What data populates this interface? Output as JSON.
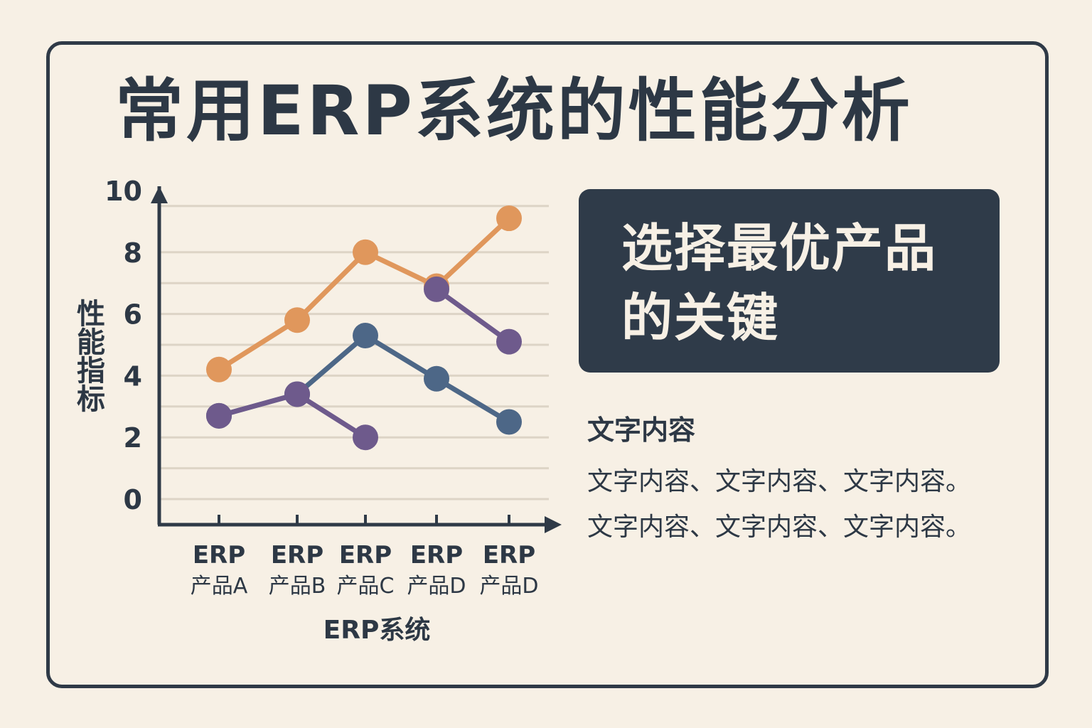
{
  "title": "常用ERP系统的性能分析",
  "panel": {
    "title": "选择最优产品的关键"
  },
  "text_block": {
    "heading": "文字内容",
    "lines": [
      "文字内容、文字内容、文字内容。",
      "文字内容、文字内容、文字内容。"
    ]
  },
  "colors": {
    "background": "#f7f0e5",
    "dark": "#2f3b49",
    "orange": "#e0975c",
    "blue": "#4d6787",
    "purple": "#6e5a8c",
    "slate": "#5d6678"
  },
  "chart_data": {
    "type": "line",
    "title": "",
    "xlabel": "ERP系统",
    "ylabel": "性能指标",
    "ylim": [
      0,
      10
    ],
    "yticks": [
      "0",
      "2",
      "4",
      "6",
      "8",
      "10"
    ],
    "categories": [
      [
        "ERP",
        "产品A"
      ],
      [
        "ERP",
        "产品B"
      ],
      [
        "ERP",
        "产品C"
      ],
      [
        "ERP",
        "产品D"
      ],
      [
        "ERP",
        "产品D"
      ]
    ],
    "grid": true,
    "series": [
      {
        "color": "#e0975c",
        "values": [
          4.2,
          5.8,
          8.0,
          6.9,
          9.1
        ]
      },
      {
        "color": "#6e5a8c",
        "values": [
          null,
          null,
          null,
          6.8,
          5.1
        ]
      },
      {
        "color": "#4d6787",
        "values": [
          2.7,
          3.4,
          5.3,
          3.9,
          2.5
        ]
      },
      {
        "color": "#6e5a8c",
        "values": [
          2.7,
          3.4,
          2.0,
          null,
          null
        ]
      }
    ]
  }
}
